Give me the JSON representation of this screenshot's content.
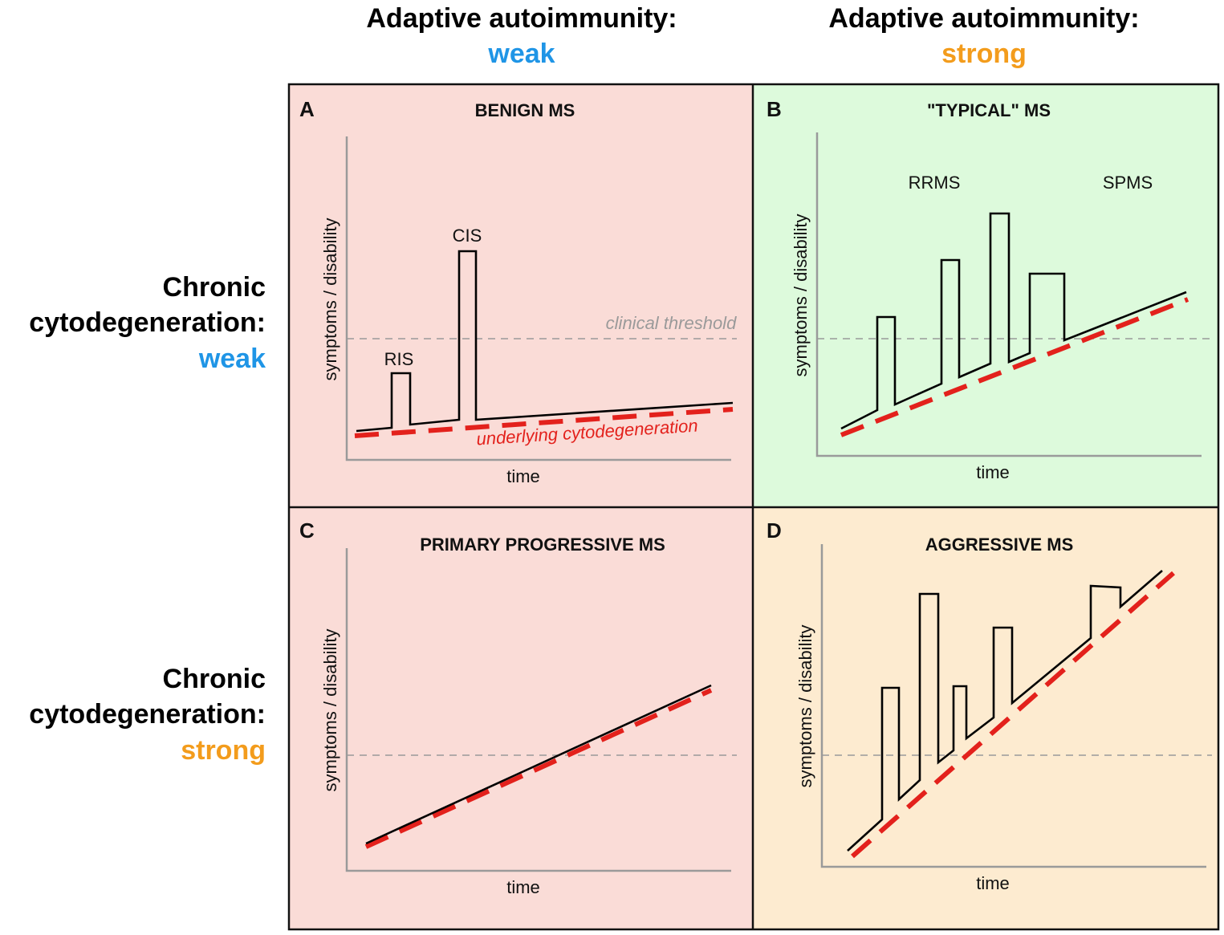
{
  "colors": {
    "weak": "#1f95e6",
    "strong": "#f39c1c",
    "panel_pink": "#fadcd7",
    "panel_green": "#ddfadc",
    "panel_tan": "#fdebd0",
    "cytodegeneration": "#e3211c",
    "threshold": "#9a9a9a"
  },
  "columns": [
    {
      "heading": "Adaptive autoimmunity:",
      "level": "weak"
    },
    {
      "heading": "Adaptive autoimmunity:",
      "level": "strong"
    }
  ],
  "rows": [
    {
      "line1": "Chronic",
      "line2": "cytodegeneration:",
      "level": "weak"
    },
    {
      "line1": "Chronic",
      "line2": "cytodegeneration:",
      "level": "strong"
    }
  ],
  "panels": [
    {
      "letter": "A",
      "title": "BENIGN MS",
      "x_label": "time",
      "y_label": "symptoms / disability",
      "annotations": [
        "RIS",
        "CIS"
      ],
      "threshold_label": "clinical threshold",
      "cyto_label": "underlying cytodegeneration"
    },
    {
      "letter": "B",
      "title": "\"TYPICAL\" MS",
      "x_label": "time",
      "y_label": "symptoms / disability",
      "annotations": [
        "RRMS",
        "SPMS"
      ]
    },
    {
      "letter": "C",
      "title": "PRIMARY PROGRESSIVE MS",
      "x_label": "time",
      "y_label": "symptoms / disability"
    },
    {
      "letter": "D",
      "title": "AGGRESSIVE MS",
      "x_label": "time",
      "y_label": "symptoms / disability"
    }
  ]
}
